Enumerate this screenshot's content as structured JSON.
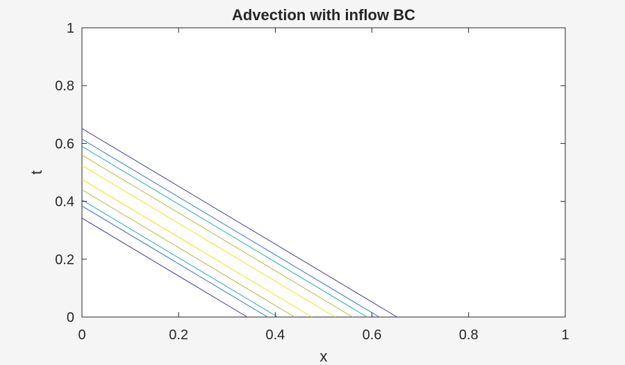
{
  "chart_data": {
    "type": "line",
    "title": "Advection with inflow BC",
    "xlabel": "x",
    "ylabel": "t",
    "xlim": [
      0,
      1
    ],
    "ylim": [
      0,
      1
    ],
    "xticks": [
      "0",
      "0.2",
      "0.4",
      "0.6",
      "0.8",
      "1"
    ],
    "yticks": [
      "0",
      "0.2",
      "0.4",
      "0.6",
      "0.8",
      "1"
    ],
    "grid": false,
    "series": [
      {
        "color": "#3b3b9c",
        "x": [
          0,
          0.342
        ],
        "y": [
          0.342,
          0
        ]
      },
      {
        "color": "#2f72d6",
        "x": [
          0,
          0.384
        ],
        "y": [
          0.384,
          0
        ]
      },
      {
        "color": "#22a8bb",
        "x": [
          0,
          0.405
        ],
        "y": [
          0.405,
          0
        ]
      },
      {
        "color": "#b8b83a",
        "x": [
          0,
          0.44
        ],
        "y": [
          0.44,
          0
        ]
      },
      {
        "color": "#f2e21a",
        "x": [
          0,
          0.476
        ],
        "y": [
          0.476,
          0
        ]
      },
      {
        "color": "#f2e21a",
        "x": [
          0,
          0.524
        ],
        "y": [
          0.524,
          0
        ]
      },
      {
        "color": "#b8b83a",
        "x": [
          0,
          0.56
        ],
        "y": [
          0.56,
          0
        ]
      },
      {
        "color": "#22a8bb",
        "x": [
          0,
          0.59
        ],
        "y": [
          0.59,
          0
        ]
      },
      {
        "color": "#2f72d6",
        "x": [
          0,
          0.615
        ],
        "y": [
          0.615,
          0
        ]
      },
      {
        "color": "#3b3b9c",
        "x": [
          0,
          0.652
        ],
        "y": [
          0.652,
          0
        ]
      }
    ]
  }
}
